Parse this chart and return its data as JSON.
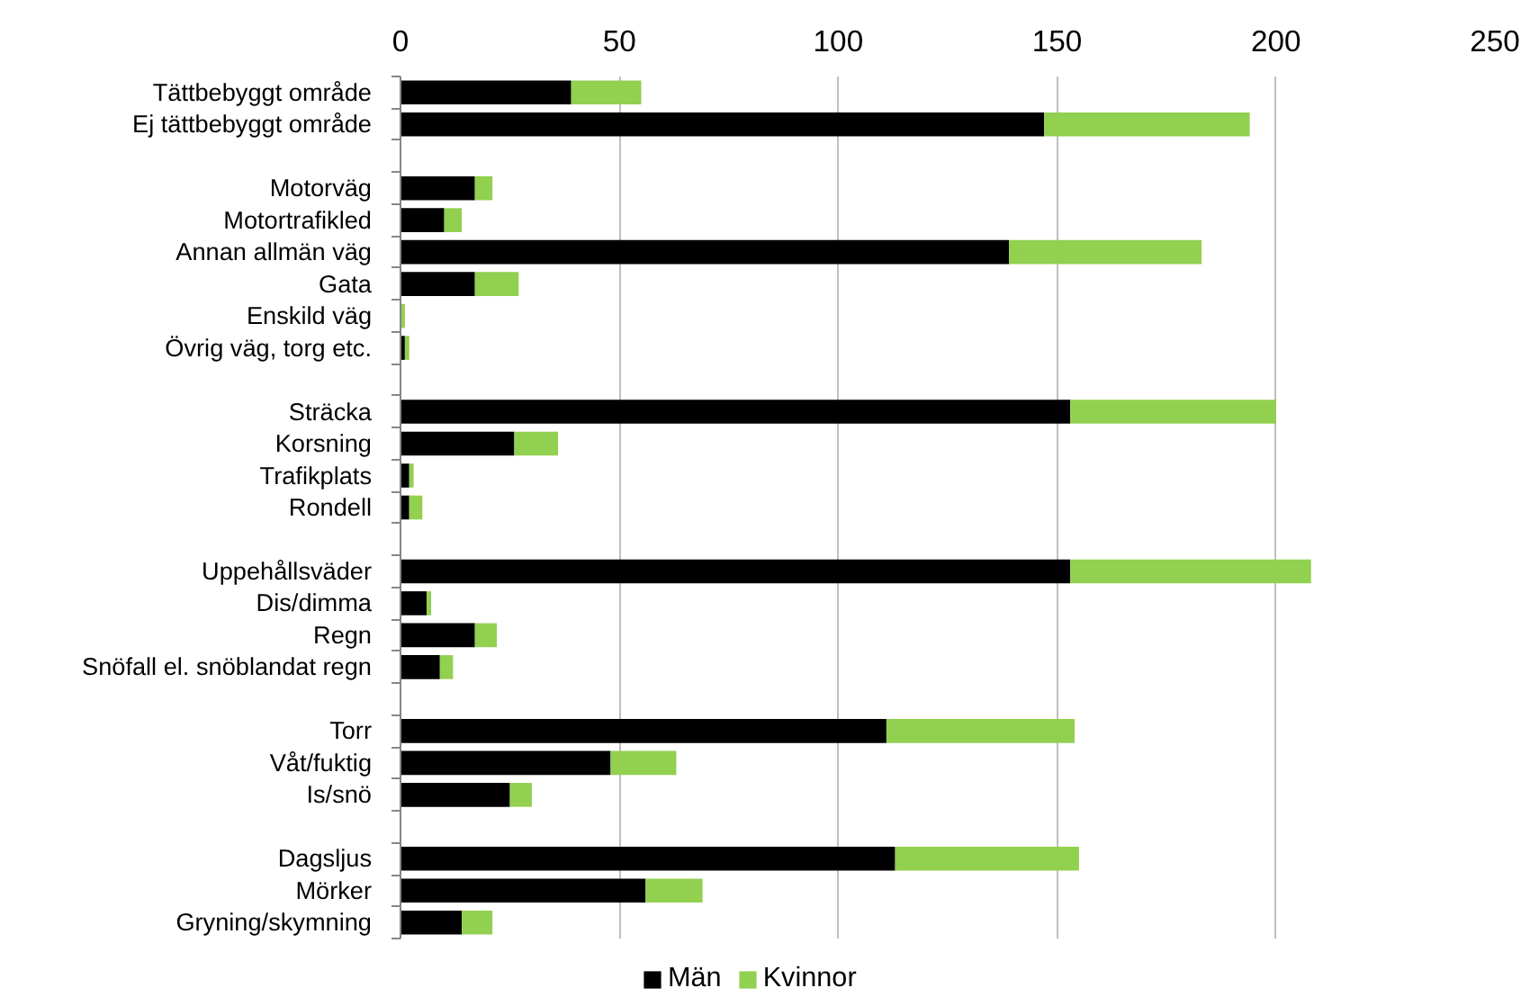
{
  "chart_data": {
    "type": "bar",
    "orientation": "horizontal",
    "stacked": true,
    "categories": [
      "Tättbebyggt område",
      "Ej tättbebyggt område",
      null,
      "Motorväg",
      "Motortrafikled",
      "Annan allmän väg",
      "Gata",
      "Enskild väg",
      "Övrig väg, torg etc.",
      null,
      "Sträcka",
      "Korsning",
      "Trafikplats",
      "Rondell",
      null,
      "Uppehållsväder",
      "Dis/dimma",
      "Regn",
      "Snöfall el. snöblandat regn",
      null,
      "Torr",
      "Våt/fuktig",
      "Is/snö",
      null,
      "Dagsljus",
      "Mörker",
      "Gryning/skymning"
    ],
    "series": [
      {
        "name": "Män",
        "color": "#000000",
        "values": [
          39,
          147,
          null,
          17,
          10,
          139,
          17,
          0,
          1,
          null,
          153,
          26,
          2,
          2,
          null,
          153,
          6,
          17,
          9,
          null,
          111,
          48,
          25,
          null,
          113,
          56,
          14
        ]
      },
      {
        "name": "Kvinnor",
        "color": "#92d050",
        "values": [
          16,
          47,
          null,
          4,
          4,
          44,
          10,
          1,
          1,
          null,
          47,
          10,
          1,
          3,
          null,
          55,
          1,
          5,
          3,
          null,
          43,
          15,
          5,
          null,
          42,
          13,
          7
        ]
      }
    ],
    "xlim": [
      0,
      250
    ],
    "xticks": [
      0,
      50,
      100,
      150,
      200,
      250
    ],
    "grid": "x",
    "legend": "bottom"
  }
}
